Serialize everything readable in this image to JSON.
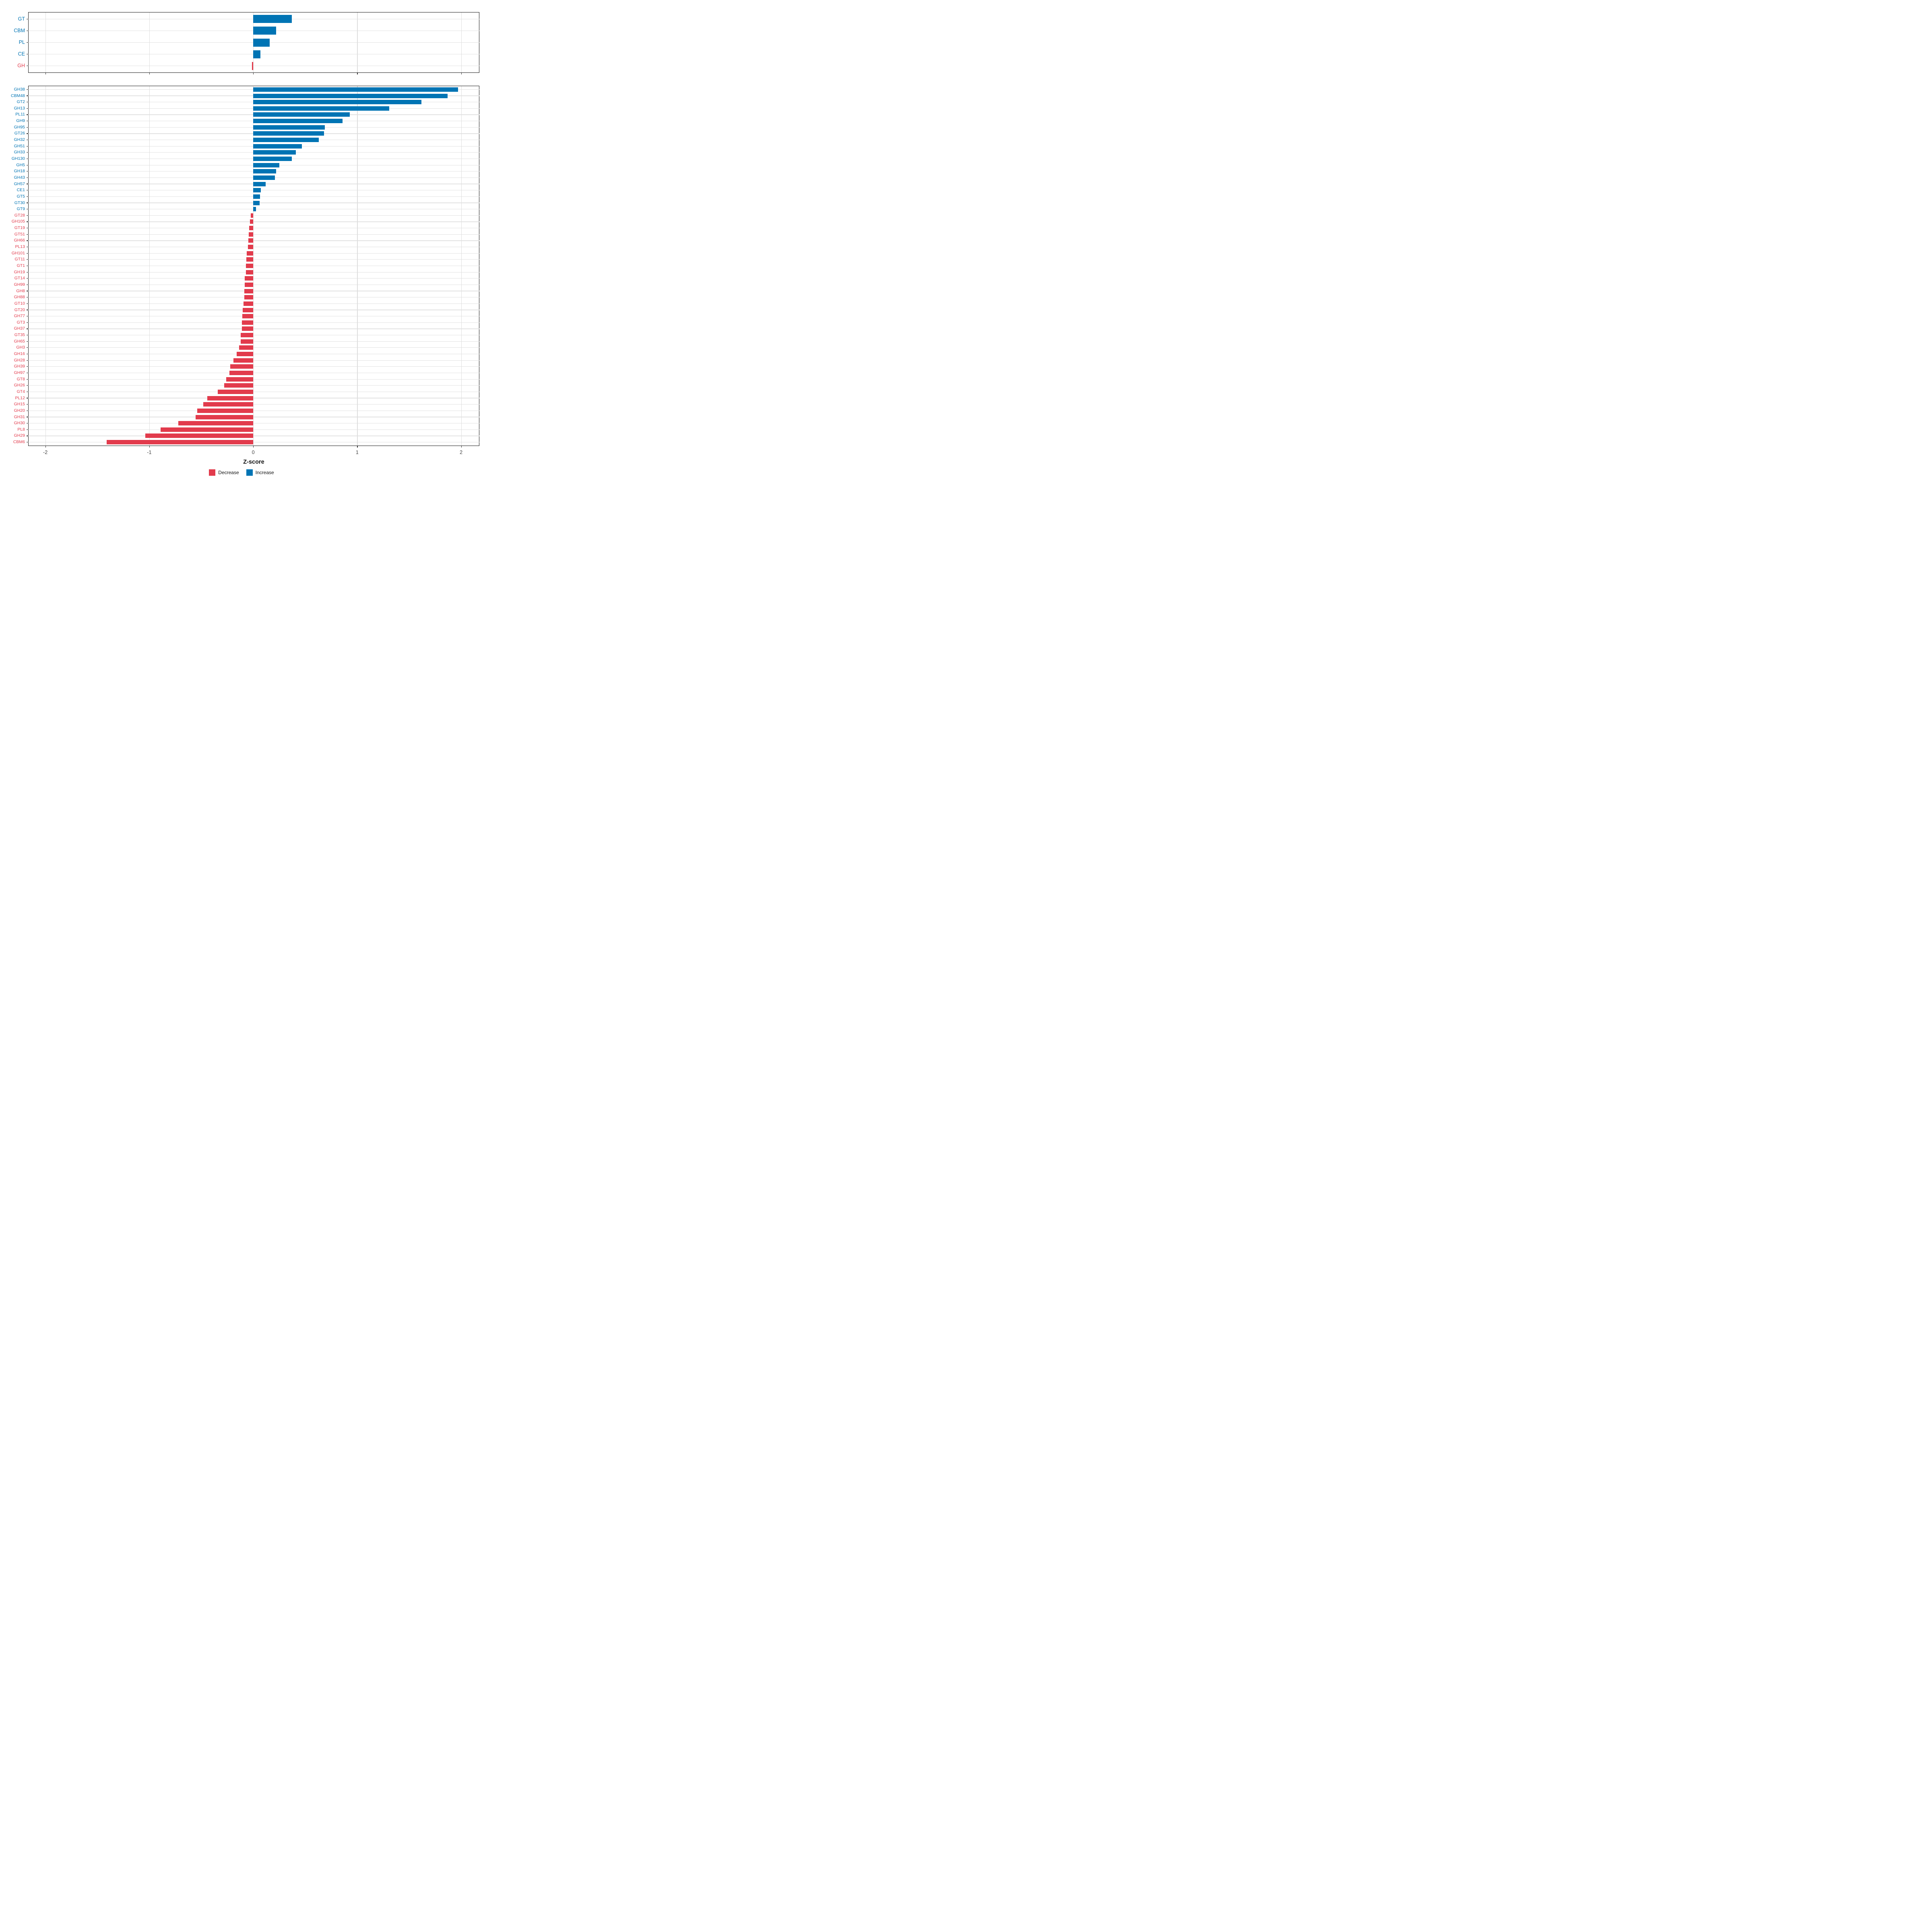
{
  "chart_data": {
    "type": "bar",
    "orientation": "horizontal",
    "xlabel": "Z-score",
    "x_ticks": [
      -2,
      -1,
      0,
      1,
      2
    ],
    "xlim": [
      -2.165,
      2.176
    ],
    "grid": "major-only",
    "legend_position": "bottom-center",
    "colors": {
      "decrease": "#E23B4C",
      "increase": "#0074B4"
    },
    "legend": [
      {
        "label": "Decrease",
        "key": "decrease"
      },
      {
        "label": "Increase",
        "key": "increase"
      }
    ],
    "panels": [
      {
        "name": "cazyme-classes",
        "categories": [
          "GT",
          "CBM",
          "PL",
          "CE",
          "GH"
        ],
        "values": [
          0.37,
          0.22,
          0.16,
          0.07,
          -0.01
        ]
      },
      {
        "name": "cazyme-families",
        "categories": [
          "GH38",
          "CBM48",
          "GT2",
          "GH13",
          "PL11",
          "GH9",
          "GH95",
          "GT26",
          "GH32",
          "GH51",
          "GH33",
          "GH130",
          "GH5",
          "GH18",
          "GH43",
          "GH57",
          "CE1",
          "GT5",
          "GT30",
          "GT9",
          "GT28",
          "GH105",
          "GT19",
          "GT51",
          "GH66",
          "PL13",
          "GH101",
          "GT11",
          "GT1",
          "GH19",
          "GT14",
          "GH99",
          "GH8",
          "GH88",
          "GT10",
          "GT20",
          "GH77",
          "GT3",
          "GH37",
          "GT35",
          "GH65",
          "GH3",
          "GH16",
          "GH28",
          "GH39",
          "GH97",
          "GT8",
          "GH26",
          "GT4",
          "PL12",
          "GH15",
          "GH20",
          "GH31",
          "GH30",
          "PL8",
          "GH29",
          "CBM6"
        ],
        "values": [
          1.97,
          1.87,
          1.62,
          1.31,
          0.93,
          0.86,
          0.69,
          0.68,
          0.63,
          0.47,
          0.41,
          0.37,
          0.25,
          0.22,
          0.21,
          0.12,
          0.072,
          0.067,
          0.06,
          0.028,
          -0.022,
          -0.033,
          -0.038,
          -0.042,
          -0.046,
          -0.052,
          -0.064,
          -0.068,
          -0.069,
          -0.07,
          -0.082,
          -0.083,
          -0.084,
          -0.086,
          -0.095,
          -0.1,
          -0.105,
          -0.107,
          -0.11,
          -0.12,
          -0.122,
          -0.136,
          -0.16,
          -0.19,
          -0.22,
          -0.23,
          -0.26,
          -0.28,
          -0.34,
          -0.44,
          -0.48,
          -0.54,
          -0.555,
          -0.72,
          -0.89,
          -1.04,
          -1.41
        ]
      }
    ]
  }
}
